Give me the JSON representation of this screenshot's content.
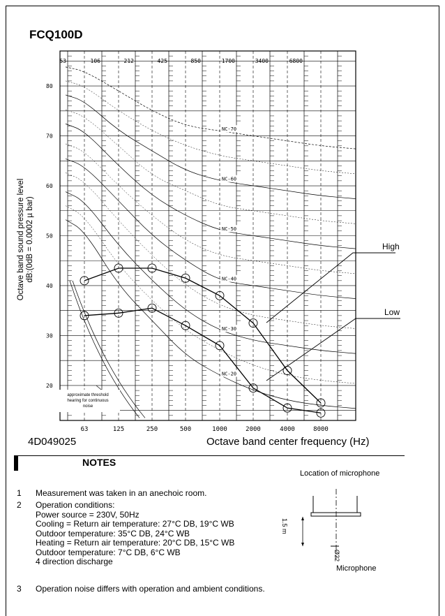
{
  "page": {
    "title": "FCQ100D",
    "doc_code": "4D049025"
  },
  "chart_data": {
    "type": "line",
    "title": "FCQ100D",
    "xlabel": "Octave band center frequency (Hz)",
    "ylabel_line1": "Octave band sound pressure level",
    "ylabel_line2": "dB:(0dB = 0.0002 µ bar)",
    "x": [
      "63",
      "125",
      "250",
      "500",
      "1000",
      "2000",
      "4000",
      "8000"
    ],
    "x_top": [
      "53",
      "106",
      "212",
      "425",
      "850",
      "1700",
      "3400",
      "6800"
    ],
    "y_ticks": [
      "20",
      "30",
      "40",
      "50",
      "60",
      "70",
      "80"
    ],
    "ylim": [
      13,
      87
    ],
    "grid": true,
    "series": [
      {
        "name": "High",
        "values": [
          41,
          43.5,
          43.5,
          41.5,
          38,
          32.5,
          23,
          16.5
        ]
      },
      {
        "name": "Low",
        "values": [
          34,
          34.5,
          35.5,
          32,
          28,
          19.5,
          15.5,
          14.5
        ]
      }
    ],
    "nc_curves": [
      {
        "label": "NC-70",
        "values": [
          83,
          79,
          75,
          72,
          71,
          70,
          69,
          68
        ]
      },
      {
        "label": "NC-60",
        "values": [
          77,
          71,
          67,
          63,
          61,
          60,
          59,
          58
        ]
      },
      {
        "label": "NC-50",
        "values": [
          71,
          64,
          58,
          54,
          51,
          50,
          49,
          48
        ]
      },
      {
        "label": "NC-40",
        "values": [
          64,
          57,
          50,
          45,
          41,
          40,
          39,
          38
        ]
      },
      {
        "label": "NC-30",
        "values": [
          57,
          48,
          41,
          35,
          31,
          29,
          28,
          27
        ]
      },
      {
        "label": "NC-20",
        "values": [
          51,
          40,
          33,
          26,
          22,
          19,
          17,
          16
        ]
      }
    ],
    "threshold_label": [
      "approximate threshold",
      "hearing for continuous",
      "noise"
    ]
  },
  "notes": {
    "title": "NOTES",
    "items": [
      {
        "num": "1",
        "lines": [
          "Measurement was taken in an anechoic room."
        ]
      },
      {
        "num": "2",
        "lines": [
          "Operation conditions:",
          "Power source = 230V, 50Hz",
          "Cooling = Return air temperature: 27°C DB, 19°C WB",
          "Outdoor temperature: 35°C DB, 24°C WB",
          "Heating = Return air temperature: 20°C DB, 15°C WB",
          "Outdoor temperature: 7°C DB, 6°C WB",
          "4 direction discharge"
        ]
      },
      {
        "num": "3",
        "lines": [
          "Operation noise differs with operation and ambient conditions."
        ]
      }
    ]
  },
  "microphone": {
    "location_label": "Location of microphone",
    "label": "Microphone",
    "dimension": "1.5 m",
    "symbol": "Ø22"
  }
}
